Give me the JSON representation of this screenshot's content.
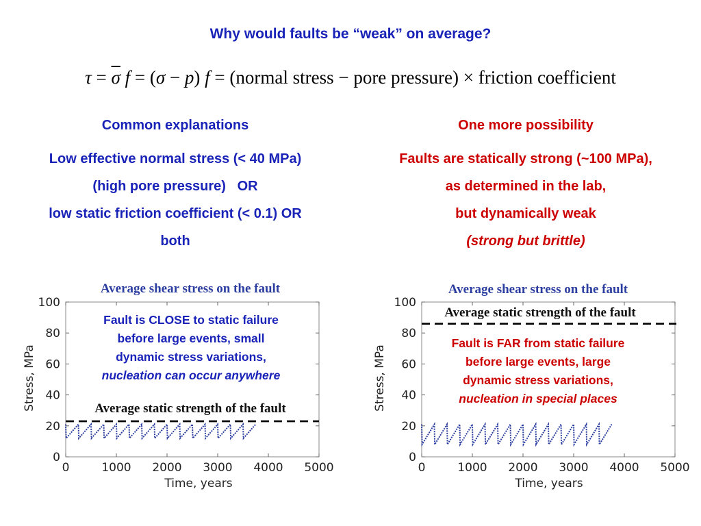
{
  "title": "Why would faults be “weak” on average?",
  "equation": {
    "tau": "τ",
    "sigma_bar": "σ",
    "f": "f",
    "sigma": "σ",
    "p": "p",
    "text": "(normal stress − pore pressure) × friction coefficient"
  },
  "left": {
    "heading": "Common explanations",
    "lines": [
      "Low effective normal stress (< 40 MPa)",
      "(high pore pressure)   OR",
      "low static friction coefficient (< 0.1) OR",
      "both"
    ]
  },
  "right": {
    "heading": "One more possibility",
    "lines": [
      "Faults are statically strong (~100 MPa),",
      "as determined in the lab,",
      "but dynamically weak",
      "(strong but brittle)"
    ]
  },
  "plots": [
    {
      "header": "Average shear stress on the fault",
      "strength_label": "Average static strength of the fault",
      "note": [
        "Fault is CLOSE to static failure",
        "before large events, small",
        "dynamic stress variations,",
        "nucleation can occur anywhere"
      ],
      "xlabel": "Time, years",
      "ylabel": "Stress, MPa"
    },
    {
      "header": "Average shear stress on the fault",
      "strength_label": "Average static strength of the fault",
      "note": [
        "Fault is FAR from static failure",
        "before large events, large",
        "dynamic stress variations,",
        "nucleation in special places"
      ],
      "xlabel": "Time, years",
      "ylabel": "Stress, MPa"
    }
  ],
  "chart_data": [
    {
      "type": "line",
      "xlabel": "Time, years",
      "ylabel": "Stress, MPa",
      "xlim": [
        0,
        5000
      ],
      "ylim": [
        0,
        100
      ],
      "xticks": [
        0,
        1000,
        2000,
        3000,
        4000,
        5000
      ],
      "yticks": [
        0,
        20,
        40,
        60,
        80,
        100
      ],
      "static_strength": 23,
      "series": [
        {
          "style": "sawtooth",
          "x_start": 0,
          "x_end": 3650,
          "period": 250,
          "min": 12,
          "max": 21
        }
      ],
      "colors": {
        "series": "#2c3fa0",
        "strength_line": "#000000"
      }
    },
    {
      "type": "line",
      "xlabel": "Time, years",
      "ylabel": "Stress, MPa",
      "xlim": [
        0,
        5000
      ],
      "ylim": [
        0,
        100
      ],
      "xticks": [
        0,
        1000,
        2000,
        3000,
        4000,
        5000
      ],
      "yticks": [
        0,
        20,
        40,
        60,
        80,
        100
      ],
      "static_strength": 86,
      "series": [
        {
          "style": "sawtooth",
          "x_start": 0,
          "x_end": 3650,
          "period": 250,
          "min": 8,
          "max": 21
        }
      ],
      "colors": {
        "series": "#2c3fa0",
        "strength_line": "#000000"
      }
    }
  ]
}
